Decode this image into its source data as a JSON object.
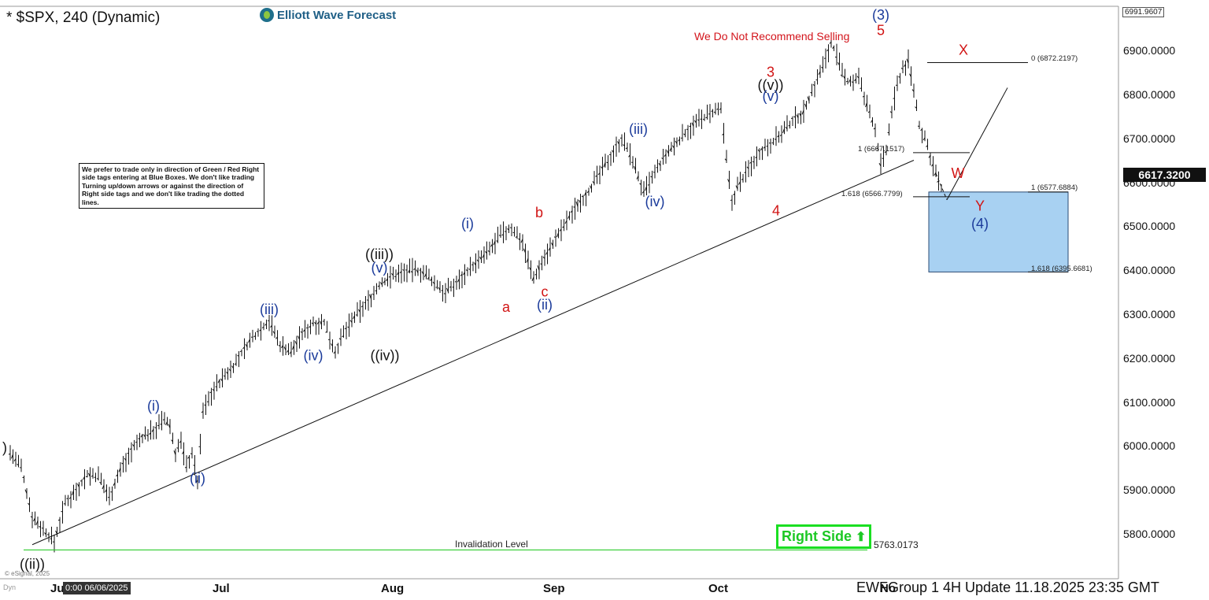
{
  "header": {
    "title": "* $SPX, 240 (Dynamic)",
    "brand": "Elliott Wave Forecast",
    "footer": "EWFGroup 1 4H  Update 11.18.2025 23:35 GMT",
    "cursor_time": "0:00 06/06/2025",
    "copyright": "© eSignal, 2025",
    "dyn": "Dyn"
  },
  "disclaimer": "We prefer to trade only in direction of Green / Red Right side tags entering at Blue Boxes. We don't like trading Turning up/down arrows or against the direction of Right side tags and we don't like trading the dotted lines.",
  "note_selling": "We Do Not Recommend Selling",
  "right_side": {
    "label": "Right Side",
    "arrow": "⬆"
  },
  "invalidation": {
    "label": "Invalidation Level",
    "value": "5763.0173"
  },
  "price": {
    "current": "6617.3200",
    "axis_top": "6991.9607"
  },
  "fib_labels": {
    "x0": "0 (6872.2197)",
    "w1": "1 (6667.1517)",
    "w1618": "1.618 (6566.7799)",
    "y1": "1 (6577.6884)",
    "y1618": "1.618 (6395.6681)"
  },
  "colors": {
    "blue_box": "#a8d1f2",
    "blue_box_border": "#2a4b74",
    "wave_red": "#d11414",
    "wave_blue": "#1a3a9a",
    "invalidation_line": "#2ecc2e",
    "right_side": "#1adf22"
  },
  "chart_data": {
    "type": "candlestick",
    "symbol": "$SPX",
    "timeframe": "240",
    "ylim": [
      5700,
      7000
    ],
    "y_ticks": [
      "6900.0000",
      "6800.0000",
      "6700.0000",
      "6600.0000",
      "6500.0000",
      "6400.0000",
      "6300.0000",
      "6200.0000",
      "6100.0000",
      "6000.0000",
      "5900.0000",
      "5800.0000"
    ],
    "x_ticks": [
      "Ju",
      "Jul",
      "Aug",
      "Sep",
      "Oct",
      "No"
    ],
    "path": [
      [
        "2025-06-02",
        5985
      ],
      [
        "2025-06-04",
        5950
      ],
      [
        "2025-06-06",
        5840
      ],
      [
        "2025-06-08",
        5810
      ],
      [
        "2025-06-10",
        5782
      ],
      [
        "2025-06-12",
        5870
      ],
      [
        "2025-06-14",
        5900
      ],
      [
        "2025-06-16",
        5935
      ],
      [
        "2025-06-18",
        5930
      ],
      [
        "2025-06-20",
        5885
      ],
      [
        "2025-06-22",
        5945
      ],
      [
        "2025-06-24",
        5990
      ],
      [
        "2025-06-26",
        6020
      ],
      [
        "2025-06-28",
        6035
      ],
      [
        "2025-06-30",
        6060
      ],
      [
        "2025-07-01",
        6045
      ],
      [
        "2025-07-02",
        5985
      ],
      [
        "2025-07-03",
        6010
      ],
      [
        "2025-07-04",
        5955
      ],
      [
        "2025-07-05",
        5985
      ],
      [
        "2025-07-06",
        5920
      ],
      [
        "2025-07-07",
        6080
      ],
      [
        "2025-07-09",
        6130
      ],
      [
        "2025-07-11",
        6160
      ],
      [
        "2025-07-13",
        6190
      ],
      [
        "2025-07-15",
        6230
      ],
      [
        "2025-07-17",
        6260
      ],
      [
        "2025-07-19",
        6285
      ],
      [
        "2025-07-21",
        6230
      ],
      [
        "2025-07-23",
        6215
      ],
      [
        "2025-07-25",
        6255
      ],
      [
        "2025-07-27",
        6280
      ],
      [
        "2025-07-29",
        6280
      ],
      [
        "2025-07-31",
        6215
      ],
      [
        "2025-08-02",
        6265
      ],
      [
        "2025-08-04",
        6300
      ],
      [
        "2025-08-06",
        6330
      ],
      [
        "2025-08-08",
        6365
      ],
      [
        "2025-08-10",
        6385
      ],
      [
        "2025-08-12",
        6395
      ],
      [
        "2025-08-14",
        6400
      ],
      [
        "2025-08-16",
        6395
      ],
      [
        "2025-08-18",
        6370
      ],
      [
        "2025-08-20",
        6350
      ],
      [
        "2025-08-22",
        6370
      ],
      [
        "2025-08-24",
        6400
      ],
      [
        "2025-08-26",
        6420
      ],
      [
        "2025-08-28",
        6445
      ],
      [
        "2025-08-30",
        6480
      ],
      [
        "2025-09-01",
        6495
      ],
      [
        "2025-09-03",
        6465
      ],
      [
        "2025-09-05",
        6380
      ],
      [
        "2025-09-07",
        6430
      ],
      [
        "2025-09-09",
        6470
      ],
      [
        "2025-09-11",
        6510
      ],
      [
        "2025-09-13",
        6550
      ],
      [
        "2025-09-15",
        6580
      ],
      [
        "2025-09-17",
        6620
      ],
      [
        "2025-09-19",
        6660
      ],
      [
        "2025-09-21",
        6700
      ],
      [
        "2025-09-23",
        6650
      ],
      [
        "2025-09-25",
        6575
      ],
      [
        "2025-09-27",
        6620
      ],
      [
        "2025-09-29",
        6660
      ],
      [
        "2025-10-01",
        6690
      ],
      [
        "2025-10-03",
        6720
      ],
      [
        "2025-10-05",
        6740
      ],
      [
        "2025-10-07",
        6755
      ],
      [
        "2025-10-09",
        6765
      ],
      [
        "2025-10-10",
        6650
      ],
      [
        "2025-10-11",
        6555
      ],
      [
        "2025-10-12",
        6590
      ],
      [
        "2025-10-14",
        6630
      ],
      [
        "2025-10-16",
        6670
      ],
      [
        "2025-10-18",
        6690
      ],
      [
        "2025-10-20",
        6710
      ],
      [
        "2025-10-22",
        6740
      ],
      [
        "2025-10-24",
        6760
      ],
      [
        "2025-10-26",
        6820
      ],
      [
        "2025-10-28",
        6880
      ],
      [
        "2025-10-29",
        6920
      ],
      [
        "2025-10-30",
        6890
      ],
      [
        "2025-10-31",
        6845
      ],
      [
        "2025-11-01",
        6830
      ],
      [
        "2025-11-02",
        6830
      ],
      [
        "2025-11-03",
        6840
      ],
      [
        "2025-11-04",
        6790
      ],
      [
        "2025-11-05",
        6760
      ],
      [
        "2025-11-06",
        6720
      ],
      [
        "2025-11-07",
        6640
      ],
      [
        "2025-11-08",
        6670
      ],
      [
        "2025-11-09",
        6760
      ],
      [
        "2025-11-10",
        6820
      ],
      [
        "2025-11-11",
        6860
      ],
      [
        "2025-11-12",
        6875
      ],
      [
        "2025-11-13",
        6810
      ],
      [
        "2025-11-14",
        6730
      ],
      [
        "2025-11-15",
        6700
      ],
      [
        "2025-11-16",
        6660
      ],
      [
        "2025-11-17",
        6620
      ],
      [
        "2025-11-18",
        6580
      ],
      [
        "2025-11-18",
        6617
      ]
    ],
    "trendline": [
      [
        "2025-06-06",
        5775
      ],
      [
        "2025-11-13",
        6650
      ]
    ],
    "projection": {
      "dashed": [
        [
          "2025-11-17",
          6620
        ],
        [
          "2025-11-19",
          6560
        ]
      ],
      "solid": [
        [
          "2025-11-19",
          6560
        ],
        [
          "2025-11-30",
          6815
        ]
      ]
    },
    "invalidation_level": 5763.0173,
    "blue_box": {
      "from": 6577.6884,
      "to": 6395.6681
    },
    "fib_levels": [
      6872.2197,
      6667.1517,
      6566.7799,
      6577.6884,
      6395.6681
    ],
    "wave_labels": [
      {
        "text": "((ii))",
        "date": "2025-06-06",
        "price": 5720,
        "color": "black"
      },
      {
        "text": ")",
        "date": "2025-06-01",
        "price": 5985,
        "color": "black"
      },
      {
        "text": "(i)",
        "date": "2025-06-28",
        "price": 6080,
        "color": "blue"
      },
      {
        "text": "(ii)",
        "date": "2025-07-06",
        "price": 5915,
        "color": "blue"
      },
      {
        "text": "(iii)",
        "date": "2025-07-19",
        "price": 6300,
        "color": "blue"
      },
      {
        "text": "(iv)",
        "date": "2025-07-27",
        "price": 6195,
        "color": "blue"
      },
      {
        "text": "((iii))",
        "date": "2025-08-08",
        "price": 6425,
        "color": "black"
      },
      {
        "text": "(v)",
        "date": "2025-08-08",
        "price": 6395,
        "color": "blue"
      },
      {
        "text": "((iv))",
        "date": "2025-08-09",
        "price": 6195,
        "color": "black"
      },
      {
        "text": "(i)",
        "date": "2025-08-24",
        "price": 6495,
        "color": "blue"
      },
      {
        "text": "a",
        "date": "2025-08-31",
        "price": 6305,
        "color": "red"
      },
      {
        "text": "b",
        "date": "2025-09-06",
        "price": 6520,
        "color": "red"
      },
      {
        "text": "c",
        "date": "2025-09-07",
        "price": 6340,
        "color": "red"
      },
      {
        "text": "(ii)",
        "date": "2025-09-07",
        "price": 6310,
        "color": "blue"
      },
      {
        "text": "(iii)",
        "date": "2025-09-24",
        "price": 6710,
        "color": "blue"
      },
      {
        "text": "(iv)",
        "date": "2025-09-27",
        "price": 6545,
        "color": "blue"
      },
      {
        "text": "3",
        "date": "2025-10-18",
        "price": 6840,
        "color": "red"
      },
      {
        "text": "((v))",
        "date": "2025-10-18",
        "price": 6810,
        "color": "black"
      },
      {
        "text": "(v)",
        "date": "2025-10-18",
        "price": 6785,
        "color": "blue"
      },
      {
        "text": "4",
        "date": "2025-10-19",
        "price": 6525,
        "color": "red"
      },
      {
        "text": "(3)",
        "date": "2025-11-07",
        "price": 6970,
        "color": "blue"
      },
      {
        "text": "5",
        "date": "2025-11-07",
        "price": 6935,
        "color": "red"
      },
      {
        "text": "W",
        "date": "2025-11-21",
        "price": 6610,
        "color": "red"
      },
      {
        "text": "X",
        "date": "2025-11-22",
        "price": 6890,
        "color": "red"
      },
      {
        "text": "Y",
        "date": "2025-11-25",
        "price": 6535,
        "color": "red"
      },
      {
        "text": "(4)",
        "date": "2025-11-25",
        "price": 6495,
        "color": "blue"
      }
    ]
  }
}
